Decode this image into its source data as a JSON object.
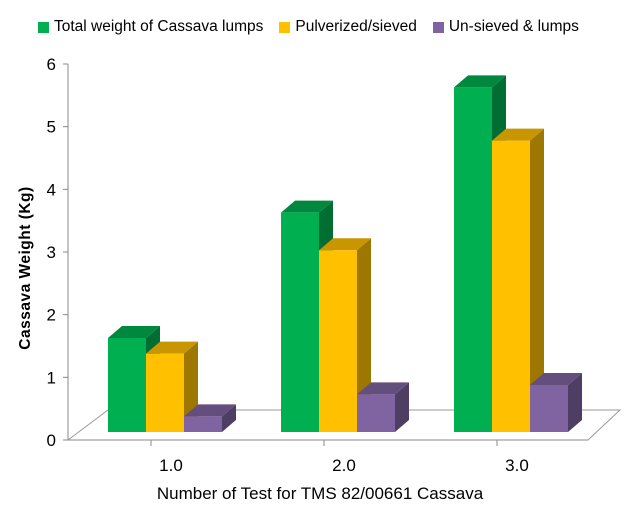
{
  "chart_data": {
    "type": "bar",
    "categories": [
      "1.0",
      "2.0",
      "3.0"
    ],
    "series": [
      {
        "name": "Total weight of Cassava lumps",
        "values": [
          1.5,
          3.5,
          5.5
        ],
        "color": "#00b050"
      },
      {
        "name": "Pulverized/sieved",
        "values": [
          1.25,
          2.9,
          4.65
        ],
        "color": "#ffc000"
      },
      {
        "name": "Un-sieved & lumps",
        "values": [
          0.25,
          0.6,
          0.75
        ],
        "color": "#8064a2"
      }
    ],
    "xlabel": "Number of Test for TMS 82/00661 Cassava",
    "ylabel": "Cassava Weight (Kg)",
    "ylim": [
      0,
      6
    ],
    "yticks": [
      "0",
      "1",
      "2",
      "3",
      "4",
      "5",
      "6"
    ],
    "grid": false,
    "legend_position": "top",
    "style": "3d-clustered-column"
  }
}
